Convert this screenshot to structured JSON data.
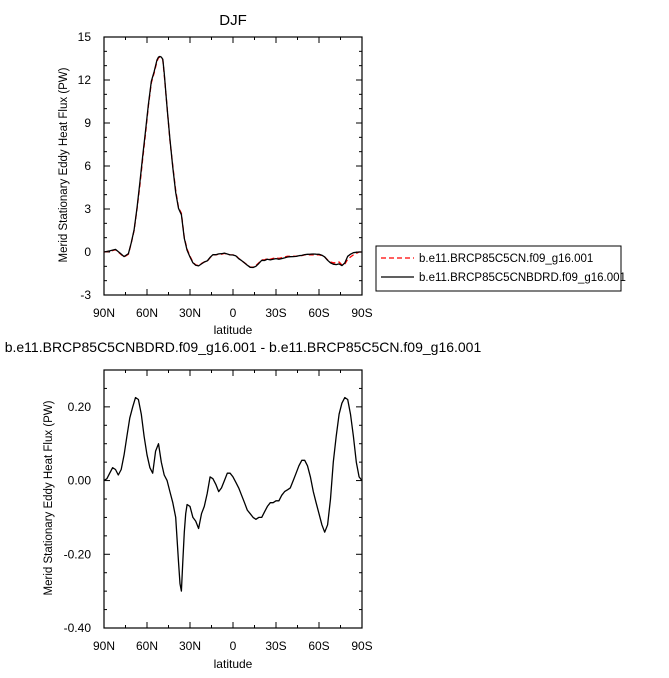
{
  "chart_data": [
    {
      "type": "line",
      "title": "DJF",
      "xlabel": "latitude",
      "ylabel": "Merid Stationary Eddy Heat Flux (PW)",
      "xlim": [
        90,
        -90
      ],
      "ylim": [
        -3,
        15
      ],
      "x_ticks": [
        90,
        60,
        30,
        0,
        -30,
        -60,
        -90
      ],
      "x_tick_labels": [
        "90N",
        "60N",
        "30N",
        "0",
        "30S",
        "60S",
        "90S"
      ],
      "y_ticks": [
        -3,
        0,
        3,
        6,
        9,
        12,
        15
      ],
      "y_tick_labels": [
        "-3",
        "0",
        "3",
        "6",
        "9",
        "12",
        "15"
      ],
      "legend_position": "right",
      "series": [
        {
          "name": "b.e11.BRCP85C5CN.f09_g16.001",
          "color": "#ff0000",
          "dash": "dashed",
          "x": [
            90,
            86,
            82,
            79,
            76,
            73,
            71,
            69,
            67,
            65,
            63,
            61,
            59,
            57,
            55,
            53,
            52,
            51,
            50,
            49,
            48,
            46,
            44,
            42,
            40,
            38,
            36,
            34,
            32,
            30,
            28,
            26,
            24,
            22,
            20,
            18,
            16,
            14,
            12,
            10,
            8,
            6,
            4,
            2,
            0,
            -2,
            -4,
            -6,
            -8,
            -10,
            -12,
            -14,
            -16,
            -18,
            -20,
            -22,
            -24,
            -26,
            -28,
            -30,
            -32,
            -34,
            -36,
            -38,
            -40,
            -42,
            -44,
            -46,
            -48,
            -50,
            -52,
            -54,
            -56,
            -58,
            -60,
            -62,
            -64,
            -66,
            -68,
            -70,
            -72,
            -74,
            -76,
            -78,
            -80,
            -82,
            -84,
            -86,
            -88,
            -90
          ],
          "y": [
            0,
            0.05,
            0.15,
            -0.1,
            -0.35,
            -0.15,
            0.6,
            1.5,
            3.0,
            4.6,
            6.5,
            8.3,
            10.2,
            11.8,
            12.5,
            13.3,
            13.55,
            13.6,
            13.55,
            13.4,
            12.4,
            10.1,
            7.8,
            6.0,
            4.3,
            3.1,
            2.7,
            1.0,
            0.2,
            -0.3,
            -0.7,
            -0.9,
            -0.95,
            -0.8,
            -0.7,
            -0.65,
            -0.4,
            -0.2,
            -0.2,
            -0.15,
            -0.15,
            -0.1,
            -0.15,
            -0.2,
            -0.2,
            -0.25,
            -0.45,
            -0.6,
            -0.75,
            -0.9,
            -1.05,
            -1.05,
            -0.95,
            -0.75,
            -0.55,
            -0.55,
            -0.45,
            -0.5,
            -0.45,
            -0.4,
            -0.45,
            -0.4,
            -0.35,
            -0.3,
            -0.3,
            -0.3,
            -0.3,
            -0.25,
            -0.25,
            -0.2,
            -0.2,
            -0.2,
            -0.2,
            -0.2,
            -0.2,
            -0.25,
            -0.35,
            -0.55,
            -0.7,
            -0.75,
            -0.75,
            -0.7,
            -0.9,
            -0.85,
            -0.5,
            -0.35,
            -0.2,
            -0.1,
            0,
            0
          ]
        },
        {
          "name": "b.e11.BRCP85C5CNBDRD.f09_g16.001",
          "color": "#000000",
          "dash": "solid",
          "x": [
            90,
            86,
            82,
            79,
            76,
            73,
            71,
            69,
            67,
            65,
            63,
            61,
            59,
            57,
            55,
            53,
            52,
            51,
            50,
            49,
            48,
            46,
            44,
            42,
            40,
            38,
            36,
            34,
            32,
            30,
            28,
            26,
            24,
            22,
            20,
            18,
            16,
            14,
            12,
            10,
            8,
            6,
            4,
            2,
            0,
            -2,
            -4,
            -6,
            -8,
            -10,
            -12,
            -14,
            -16,
            -18,
            -20,
            -22,
            -24,
            -26,
            -28,
            -30,
            -32,
            -34,
            -36,
            -38,
            -40,
            -42,
            -44,
            -46,
            -48,
            -50,
            -52,
            -54,
            -56,
            -58,
            -60,
            -62,
            -64,
            -66,
            -68,
            -70,
            -72,
            -74,
            -76,
            -78,
            -80,
            -82,
            -84,
            -86,
            -88,
            -90
          ],
          "y": [
            0,
            0.08,
            0.18,
            -0.06,
            -0.32,
            -0.12,
            0.63,
            1.55,
            3.07,
            4.8,
            6.7,
            8.5,
            10.3,
            11.9,
            12.6,
            13.4,
            13.6,
            13.65,
            13.6,
            13.45,
            12.5,
            10.05,
            7.9,
            5.9,
            4.15,
            3.05,
            2.6,
            0.95,
            0.12,
            -0.35,
            -0.75,
            -0.92,
            -0.97,
            -0.83,
            -0.7,
            -0.62,
            -0.38,
            -0.19,
            -0.19,
            -0.13,
            -0.12,
            -0.08,
            -0.14,
            -0.2,
            -0.21,
            -0.27,
            -0.47,
            -0.6,
            -0.76,
            -0.92,
            -1.07,
            -1.08,
            -1.0,
            -0.8,
            -0.58,
            -0.59,
            -0.5,
            -0.55,
            -0.5,
            -0.46,
            -0.5,
            -0.46,
            -0.41,
            -0.35,
            -0.33,
            -0.32,
            -0.31,
            -0.26,
            -0.24,
            -0.18,
            -0.16,
            -0.15,
            -0.14,
            -0.15,
            -0.16,
            -0.22,
            -0.34,
            -0.58,
            -0.76,
            -0.85,
            -0.88,
            -0.83,
            -0.95,
            -0.77,
            -0.3,
            -0.15,
            -0.05,
            -0.02,
            0,
            0
          ]
        }
      ]
    },
    {
      "type": "line",
      "title": "b.e11.BRCP85C5CNBDRD.f09_g16.001 - b.e11.BRCP85C5CN.f09_g16.001",
      "xlabel": "latitude",
      "ylabel": "Merid Stationary Eddy Heat Flux (PW)",
      "xlim": [
        90,
        -90
      ],
      "ylim": [
        -0.4,
        0.3
      ],
      "x_ticks": [
        90,
        60,
        30,
        0,
        -30,
        -60,
        -90
      ],
      "x_tick_labels": [
        "90N",
        "60N",
        "30N",
        "0",
        "30S",
        "60S",
        "90S"
      ],
      "y_ticks": [
        -0.4,
        -0.2,
        0.0,
        0.2
      ],
      "y_tick_labels": [
        "-0.40",
        "-0.20",
        "0.00",
        "0.20"
      ],
      "series": [
        {
          "color": "#000000",
          "dash": "solid",
          "x": [
            90,
            88,
            86,
            84,
            82,
            80,
            78,
            76,
            74,
            72,
            70,
            68,
            66,
            64,
            62,
            60,
            58,
            56,
            54,
            52,
            50,
            48,
            46,
            44,
            42,
            40,
            38,
            37,
            36,
            35,
            34,
            33,
            32,
            30,
            28,
            26,
            24,
            22,
            20,
            18,
            16,
            14,
            12,
            10,
            8,
            6,
            4,
            2,
            0,
            -2,
            -4,
            -6,
            -8,
            -10,
            -12,
            -14,
            -16,
            -18,
            -20,
            -22,
            -24,
            -26,
            -28,
            -30,
            -32,
            -34,
            -36,
            -38,
            -40,
            -42,
            -44,
            -46,
            -48,
            -50,
            -52,
            -54,
            -56,
            -58,
            -60,
            -62,
            -64,
            -66,
            -68,
            -70,
            -72,
            -74,
            -76,
            -78,
            -80,
            -82,
            -84,
            -86,
            -88,
            -90
          ],
          "y": [
            0,
            0.005,
            0.02,
            0.035,
            0.03,
            0.015,
            0.03,
            0.07,
            0.12,
            0.17,
            0.2,
            0.225,
            0.22,
            0.18,
            0.12,
            0.07,
            0.035,
            0.02,
            0.08,
            0.1,
            0.05,
            0.015,
            0.0,
            -0.03,
            -0.06,
            -0.1,
            -0.22,
            -0.28,
            -0.3,
            -0.22,
            -0.14,
            -0.09,
            -0.065,
            -0.07,
            -0.1,
            -0.11,
            -0.13,
            -0.09,
            -0.07,
            -0.035,
            0.01,
            0.005,
            -0.01,
            -0.03,
            -0.02,
            0.0,
            0.02,
            0.02,
            0.01,
            -0.005,
            -0.02,
            -0.04,
            -0.06,
            -0.08,
            -0.09,
            -0.1,
            -0.105,
            -0.1,
            -0.1,
            -0.085,
            -0.07,
            -0.06,
            -0.06,
            -0.055,
            -0.055,
            -0.04,
            -0.03,
            -0.025,
            -0.02,
            0.0,
            0.02,
            0.04,
            0.055,
            0.055,
            0.04,
            0.01,
            -0.03,
            -0.06,
            -0.09,
            -0.12,
            -0.14,
            -0.12,
            -0.05,
            0.05,
            0.12,
            0.18,
            0.21,
            0.225,
            0.22,
            0.18,
            0.12,
            0.05,
            0.01,
            0
          ],
          "name": ""
        }
      ]
    }
  ]
}
